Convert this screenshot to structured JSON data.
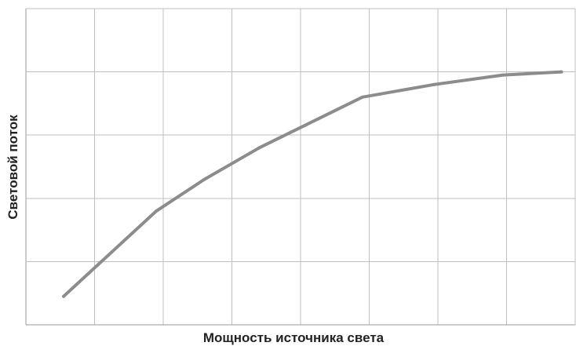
{
  "chart_data": {
    "type": "line",
    "xlabel": "Мощность источника света",
    "ylabel": "Световой поток",
    "xlim": [
      0,
      8
    ],
    "ylim": [
      0,
      5
    ],
    "x_gridlines": [
      0,
      1,
      2,
      3,
      4,
      5,
      6,
      7,
      8
    ],
    "y_gridlines": [
      0,
      1,
      2,
      3,
      4,
      5
    ],
    "grid": true,
    "tick_labels_visible": false,
    "legend": "none",
    "series": [
      {
        "x": [
          0.55,
          1.9,
          2.6,
          3.4,
          4.9,
          5.95,
          6.95,
          7.8
        ],
        "values": [
          0.45,
          1.8,
          2.3,
          2.8,
          3.6,
          3.8,
          3.95,
          4.0
        ]
      }
    ],
    "colors": {
      "line": "#8c8c8c",
      "grid": "#bfbfbf",
      "axis": "#9a9a9a",
      "text": "#222222"
    }
  }
}
